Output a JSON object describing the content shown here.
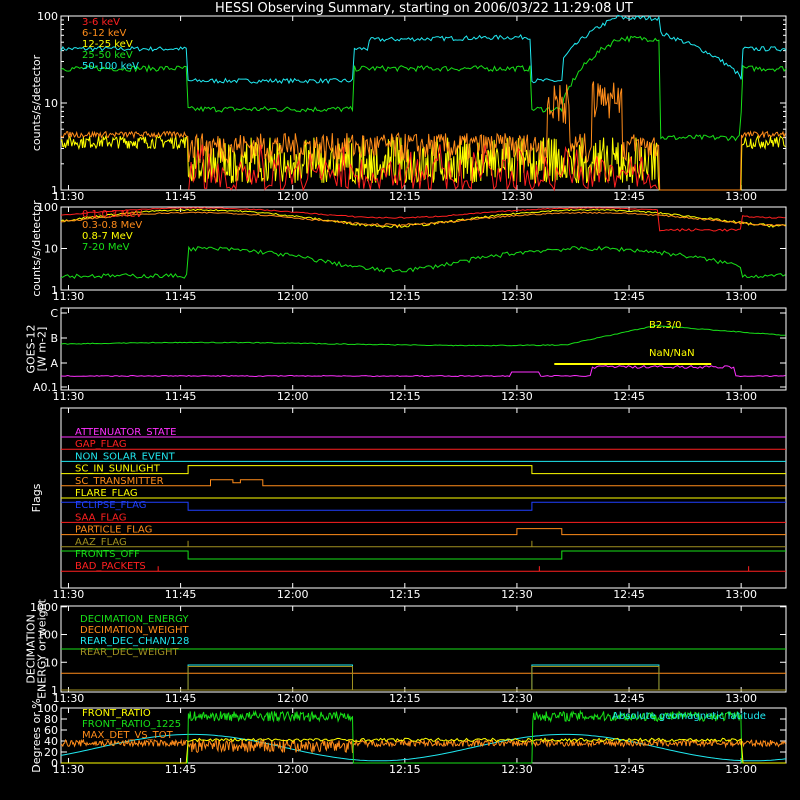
{
  "title": "HESSI Observing Summary, starting on 2006/03/22 11:29:08 UT",
  "time_ticks": [
    "11:30",
    "11:45",
    "12:00",
    "12:15",
    "12:30",
    "12:45",
    "13:00"
  ],
  "colors": {
    "red": "#ff2020",
    "orange": "#ff8c1a",
    "yellow": "#ffff00",
    "green": "#18e018",
    "cyan": "#20e8f0",
    "magenta": "#ff30ff",
    "blue": "#2040ff",
    "olive": "#a09020",
    "white": "#ffffff"
  },
  "chart_data": [
    {
      "id": "hxr",
      "type": "line",
      "log": true,
      "ylabel": "counts/s/detector",
      "ytick_labels": [
        "1",
        "10",
        "100"
      ],
      "yticks": [
        1,
        10,
        100
      ],
      "ylim": [
        1,
        100
      ],
      "legend": [
        "3-6 keV",
        "6-12 keV",
        "12-25 keV",
        "25-50 keV",
        "50-100 keV"
      ],
      "legend_colors": [
        "#ff2020",
        "#ff8c1a",
        "#ffff00",
        "#18e018",
        "#20e8f0"
      ]
    },
    {
      "id": "gamma",
      "type": "line",
      "log": true,
      "ylabel": "counts/s/detector",
      "ytick_labels": [
        "1",
        "10",
        "100"
      ],
      "yticks": [
        1,
        10,
        100
      ],
      "ylim": [
        1,
        100
      ],
      "legend": [
        "0.1-0.3 MeV",
        "0.3-0.8 MeV",
        "0.8-7 MeV",
        "7-20 MeV"
      ],
      "legend_colors": [
        "#ff2020",
        "#ff8c1a",
        "#ffff00",
        "#18e018"
      ]
    },
    {
      "id": "goes",
      "type": "line",
      "ylabel": "GOES-12 [W m-2]",
      "ytick_labels": [
        "C",
        "B",
        "A",
        "A0.1"
      ],
      "annotations": [
        "B2.3/0",
        "NaN/NaN"
      ]
    },
    {
      "id": "flags",
      "type": "line",
      "ylabel": "Flags",
      "flags": [
        {
          "name": "ATTENUATOR_STATE",
          "color": "#ff30ff"
        },
        {
          "name": "GAP_FLAG",
          "color": "#ff2020"
        },
        {
          "name": "NON_SOLAR_EVENT",
          "color": "#20e8f0"
        },
        {
          "name": "SC_IN_SUNLIGHT",
          "color": "#ffff00"
        },
        {
          "name": "SC_TRANSMITTER",
          "color": "#ff8c1a"
        },
        {
          "name": "FLARE_FLAG",
          "color": "#ffff00"
        },
        {
          "name": "ECLIPSE_FLAG",
          "color": "#2040ff"
        },
        {
          "name": "SAA_FLAG",
          "color": "#ff2020"
        },
        {
          "name": "PARTICLE_FLAG",
          "color": "#ff8c1a"
        },
        {
          "name": "AAZ_FLAG",
          "color": "#a09020"
        },
        {
          "name": "FRONTS_OFF",
          "color": "#18e018"
        },
        {
          "name": "BAD_PACKETS",
          "color": "#ff2020"
        }
      ]
    },
    {
      "id": "decim",
      "type": "line",
      "log": true,
      "ylabel": "DECIMATION ENERGY or weight",
      "ytick_labels": [
        "1",
        "10",
        "100",
        "1000"
      ],
      "legend": [
        "DECIMATION_ENERGY",
        "DECIMATION_WEIGHT",
        "REAR_DEC_CHAN/128",
        "REAR_DEC_WEIGHT"
      ],
      "legend_colors": [
        "#18e018",
        "#ff8c1a",
        "#20e8f0",
        "#a09020"
      ]
    },
    {
      "id": "ratio",
      "type": "line",
      "ylabel": "Degrees or %",
      "ytick_labels": [
        "0",
        "20",
        "40",
        "60",
        "80",
        "100"
      ],
      "ylim": [
        0,
        100
      ],
      "legend": [
        "FRONT_RATIO",
        "FRONT_RATIO_1225",
        "MAX_DET_VS_TOT"
      ],
      "legend_colors": [
        "#ffff00",
        "#18e018",
        "#ff8c1a"
      ],
      "annotation": "Absolute geomagnetic latitude"
    }
  ]
}
